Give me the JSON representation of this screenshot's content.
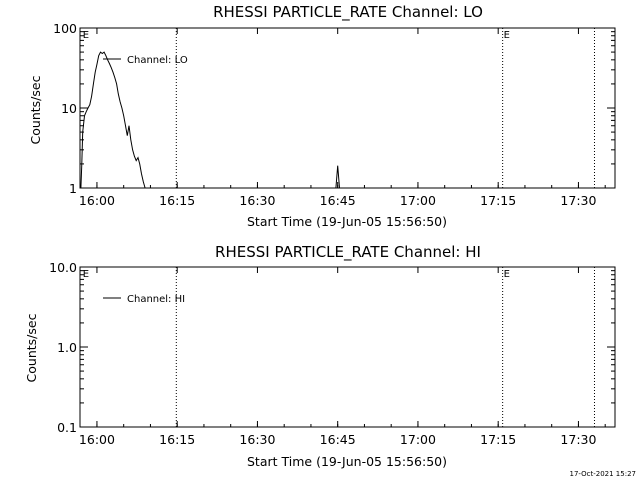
{
  "footer": {
    "timestamp": "17-Oct-2021 15:27"
  },
  "chart_data": [
    {
      "type": "line",
      "title": "RHESSI PARTICLE_RATE Channel: LO",
      "xlabel": "Start Time (19-Jun-05 15:56:50)",
      "ylabel": "Counts/sec",
      "yscale": "log",
      "xlim": [
        "15:56:50",
        "17:36:50"
      ],
      "ylim": [
        1,
        100
      ],
      "x_ticks": [
        "16:00",
        "16:15",
        "16:30",
        "16:45",
        "17:00",
        "17:15",
        "17:30"
      ],
      "y_ticks": [
        "1",
        "10",
        "100"
      ],
      "legend": {
        "position": "top-left",
        "entries": [
          "Channel: LO"
        ]
      },
      "markers": [
        {
          "time": "15:57:10",
          "label": "E"
        },
        {
          "time": "17:15:50",
          "label": "E"
        }
      ],
      "vlines": [
        "16:14:50",
        "17:15:50",
        "17:33:00"
      ],
      "grid": false,
      "series": [
        {
          "name": "Channel: LO",
          "segments": [
            [
              [
                "15:57:00",
                1.0
              ],
              [
                "15:57:10",
                2.0
              ],
              [
                "15:57:20",
                5.0
              ],
              [
                "15:57:40",
                8.0
              ],
              [
                "15:58:00",
                9.0
              ],
              [
                "15:58:20",
                10.0
              ],
              [
                "15:58:40",
                11.0
              ],
              [
                "15:59:00",
                14.0
              ],
              [
                "15:59:20",
                20.0
              ],
              [
                "15:59:40",
                28.0
              ],
              [
                "16:00:00",
                35.0
              ],
              [
                "16:00:20",
                45.0
              ],
              [
                "16:00:40",
                50.0
              ],
              [
                "16:01:00",
                48.0
              ],
              [
                "16:01:20",
                50.0
              ],
              [
                "16:01:40",
                45.0
              ],
              [
                "16:02:00",
                40.0
              ],
              [
                "16:02:20",
                36.0
              ],
              [
                "16:02:40",
                32.0
              ],
              [
                "16:03:00",
                28.0
              ],
              [
                "16:03:20",
                24.0
              ],
              [
                "16:03:40",
                20.0
              ],
              [
                "16:04:00",
                15.0
              ],
              [
                "16:04:20",
                12.0
              ],
              [
                "16:04:40",
                10.0
              ],
              [
                "16:05:00",
                8.0
              ],
              [
                "16:05:20",
                6.0
              ],
              [
                "16:05:40",
                4.5
              ],
              [
                "16:06:00",
                6.0
              ],
              [
                "16:06:20",
                4.0
              ],
              [
                "16:06:40",
                3.0
              ],
              [
                "16:07:00",
                2.5
              ],
              [
                "16:07:20",
                2.2
              ],
              [
                "16:07:40",
                2.4
              ],
              [
                "16:08:00",
                2.0
              ],
              [
                "16:08:20",
                1.5
              ],
              [
                "16:08:40",
                1.2
              ],
              [
                "16:09:00",
                1.0
              ]
            ],
            [
              [
                "16:44:40",
                1.0
              ],
              [
                "16:45:00",
                1.9
              ],
              [
                "16:45:20",
                1.0
              ]
            ]
          ]
        }
      ]
    },
    {
      "type": "line",
      "title": "RHESSI PARTICLE_RATE Channel: HI",
      "xlabel": "Start Time (19-Jun-05 15:56:50)",
      "ylabel": "Counts/sec",
      "yscale": "log",
      "xlim": [
        "15:56:50",
        "17:36:50"
      ],
      "ylim": [
        0.1,
        10
      ],
      "x_ticks": [
        "16:00",
        "16:15",
        "16:30",
        "16:45",
        "17:00",
        "17:15",
        "17:30"
      ],
      "y_ticks": [
        "0.1",
        "1.0",
        "10.0"
      ],
      "legend": {
        "position": "top-left",
        "entries": [
          "Channel: HI"
        ]
      },
      "markers": [
        {
          "time": "15:57:10",
          "label": "E"
        },
        {
          "time": "17:15:50",
          "label": "E"
        }
      ],
      "vlines": [
        "16:14:50",
        "17:15:50",
        "17:33:00"
      ],
      "grid": false,
      "series": [
        {
          "name": "Channel: HI",
          "segments": []
        }
      ]
    }
  ]
}
